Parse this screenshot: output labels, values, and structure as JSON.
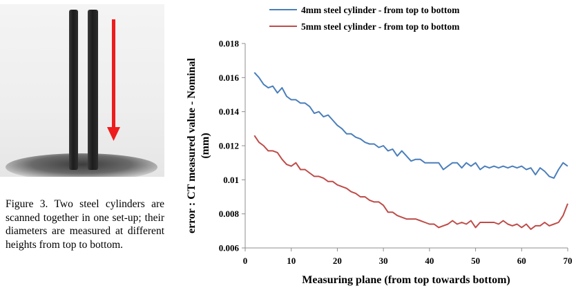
{
  "figure": {
    "caption": "Figure 3. Two steel cylinders are scanned together in one set-up; their diameters are measured at different heights from top to bottom.",
    "arrow_color": "#ee1c1c"
  },
  "chart_data": {
    "type": "line",
    "title": "",
    "xlabel": "Measuring plane (from top towards bottom)",
    "ylabel": "error : CT measured value - Nominal (mm)",
    "xlim": [
      0,
      70
    ],
    "ylim": [
      0.006,
      0.018
    ],
    "x_ticks": [
      "0",
      "10",
      "20",
      "30",
      "40",
      "50",
      "60",
      "70"
    ],
    "y_ticks": [
      "0.006",
      "0.008",
      "0.01",
      "0.012",
      "0.014",
      "0.016",
      "0.018"
    ],
    "grid": false,
    "legend_position": "top",
    "series": [
      {
        "name": "4mm steel cylinder - from top to bottom",
        "color": "#4a7ebb",
        "x": [
          2,
          3,
          4,
          5,
          6,
          7,
          8,
          9,
          10,
          11,
          12,
          13,
          14,
          15,
          16,
          17,
          18,
          19,
          20,
          21,
          22,
          23,
          24,
          25,
          26,
          27,
          28,
          29,
          30,
          31,
          32,
          33,
          34,
          35,
          36,
          37,
          38,
          39,
          40,
          41,
          42,
          43,
          44,
          45,
          46,
          47,
          48,
          49,
          50,
          51,
          52,
          53,
          54,
          55,
          56,
          57,
          58,
          59,
          60,
          61,
          62,
          63,
          64,
          65,
          66,
          67,
          68,
          69,
          70
        ],
        "values": [
          0.0163,
          0.016,
          0.0156,
          0.0154,
          0.0155,
          0.0151,
          0.0154,
          0.0149,
          0.0147,
          0.0147,
          0.0145,
          0.0145,
          0.0143,
          0.0139,
          0.014,
          0.0137,
          0.0138,
          0.0135,
          0.0132,
          0.013,
          0.0127,
          0.0127,
          0.0125,
          0.0124,
          0.0122,
          0.0121,
          0.0121,
          0.0119,
          0.012,
          0.0117,
          0.0118,
          0.0114,
          0.0117,
          0.0114,
          0.0111,
          0.0112,
          0.0112,
          0.011,
          0.011,
          0.011,
          0.011,
          0.0106,
          0.0108,
          0.011,
          0.011,
          0.0107,
          0.011,
          0.0108,
          0.011,
          0.0106,
          0.0108,
          0.0107,
          0.0108,
          0.0107,
          0.0108,
          0.0107,
          0.0108,
          0.0107,
          0.0108,
          0.0106,
          0.0107,
          0.0103,
          0.0107,
          0.0105,
          0.0102,
          0.0101,
          0.0106,
          0.011,
          0.0108
        ]
      },
      {
        "name": "5mm steel cylinder - from top to bottom",
        "color": "#be4b48",
        "x": [
          2,
          3,
          4,
          5,
          6,
          7,
          8,
          9,
          10,
          11,
          12,
          13,
          14,
          15,
          16,
          17,
          18,
          19,
          20,
          21,
          22,
          23,
          24,
          25,
          26,
          27,
          28,
          29,
          30,
          31,
          32,
          33,
          34,
          35,
          36,
          37,
          38,
          39,
          40,
          41,
          42,
          43,
          44,
          45,
          46,
          47,
          48,
          49,
          50,
          51,
          52,
          53,
          54,
          55,
          56,
          57,
          58,
          59,
          60,
          61,
          62,
          63,
          64,
          65,
          66,
          67,
          68,
          69,
          70
        ],
        "values": [
          0.0126,
          0.0122,
          0.012,
          0.0117,
          0.0117,
          0.0116,
          0.0112,
          0.0109,
          0.0108,
          0.011,
          0.0106,
          0.0106,
          0.0104,
          0.0102,
          0.0102,
          0.0101,
          0.0099,
          0.0099,
          0.0097,
          0.0096,
          0.0095,
          0.0093,
          0.0092,
          0.009,
          0.009,
          0.0088,
          0.0087,
          0.0087,
          0.0085,
          0.0081,
          0.0081,
          0.0079,
          0.0078,
          0.0077,
          0.0077,
          0.0077,
          0.0076,
          0.0075,
          0.0074,
          0.0074,
          0.0072,
          0.0073,
          0.0074,
          0.0076,
          0.0074,
          0.0075,
          0.0074,
          0.0076,
          0.0072,
          0.0075,
          0.0075,
          0.0075,
          0.0075,
          0.0074,
          0.0076,
          0.0074,
          0.0073,
          0.0074,
          0.0072,
          0.0074,
          0.0071,
          0.0073,
          0.0073,
          0.0075,
          0.0073,
          0.0074,
          0.0075,
          0.0079,
          0.0086
        ]
      }
    ]
  }
}
